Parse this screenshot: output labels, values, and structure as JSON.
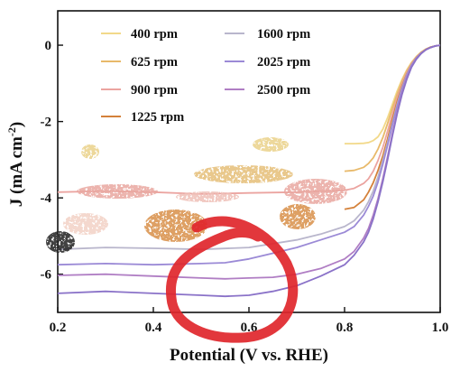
{
  "chart_data": {
    "type": "line",
    "xlabel": "Potential (V vs. RHE)",
    "ylabel_main": "J (mA cm",
    "ylabel_sup": "-2",
    "ylabel_close": ")",
    "xlim": [
      0.2,
      1.0
    ],
    "ylim": [
      -7,
      0.9
    ],
    "x_ticks": [
      0.2,
      0.4,
      0.6,
      0.8,
      1.0
    ],
    "x_tick_labels": [
      "0.2",
      "0.4",
      "0.6",
      "0.8",
      "1.0"
    ],
    "y_ticks": [
      0,
      -2,
      -4,
      -6
    ],
    "y_tick_labels": [
      "0",
      "-2",
      "-4",
      "-6"
    ],
    "grid": false,
    "legend_placement": "top-left",
    "series": [
      {
        "name": "400 rpm",
        "color": "#f2d98a",
        "x": [
          0.8,
          0.82,
          0.84,
          0.85,
          0.86,
          0.87,
          0.88,
          0.89,
          0.9,
          0.91,
          0.92,
          0.93,
          0.94,
          0.95,
          0.96,
          0.97,
          0.98,
          0.99,
          1.0
        ],
        "y": [
          -2.58,
          -2.58,
          -2.57,
          -2.55,
          -2.5,
          -2.4,
          -2.2,
          -1.9,
          -1.55,
          -1.2,
          -0.9,
          -0.65,
          -0.45,
          -0.3,
          -0.18,
          -0.1,
          -0.05,
          -0.02,
          0
        ]
      },
      {
        "name": "625 rpm",
        "color": "#e8b96a",
        "x": [
          0.8,
          0.82,
          0.84,
          0.85,
          0.86,
          0.87,
          0.88,
          0.89,
          0.9,
          0.91,
          0.92,
          0.93,
          0.94,
          0.95,
          0.96,
          0.97,
          0.98,
          0.99,
          1.0
        ],
        "y": [
          -3.3,
          -3.28,
          -3.2,
          -3.1,
          -2.95,
          -2.72,
          -2.42,
          -2.05,
          -1.65,
          -1.28,
          -0.95,
          -0.68,
          -0.47,
          -0.31,
          -0.19,
          -0.11,
          -0.05,
          -0.02,
          0
        ]
      },
      {
        "name": "900 rpm",
        "color": "#eba4a0",
        "x": [
          0.2,
          0.3,
          0.4,
          0.5,
          0.6,
          0.7,
          0.8,
          0.82,
          0.84,
          0.85,
          0.86,
          0.87,
          0.88,
          0.89,
          0.9,
          0.91,
          0.92,
          0.93,
          0.94,
          0.95,
          0.96,
          0.97,
          0.98,
          0.99,
          1.0
        ],
        "y": [
          -3.85,
          -3.82,
          -3.85,
          -3.9,
          -3.87,
          -3.85,
          -3.8,
          -3.75,
          -3.62,
          -3.5,
          -3.3,
          -3.02,
          -2.68,
          -2.25,
          -1.8,
          -1.38,
          -1.02,
          -0.72,
          -0.49,
          -0.32,
          -0.2,
          -0.11,
          -0.05,
          -0.02,
          0
        ]
      },
      {
        "name": "1225 rpm",
        "color": "#d4813a",
        "x": [
          0.8,
          0.82,
          0.84,
          0.85,
          0.86,
          0.87,
          0.88,
          0.89,
          0.9,
          0.91,
          0.92,
          0.93,
          0.94,
          0.95,
          0.96,
          0.97,
          0.98,
          0.99,
          1.0
        ],
        "y": [
          -4.3,
          -4.25,
          -4.05,
          -3.85,
          -3.6,
          -3.28,
          -2.9,
          -2.45,
          -1.95,
          -1.48,
          -1.08,
          -0.76,
          -0.51,
          -0.33,
          -0.2,
          -0.11,
          -0.05,
          -0.02,
          0
        ]
      },
      {
        "name": "1600 rpm",
        "color": "#b9b6cc",
        "x": [
          0.2,
          0.3,
          0.4,
          0.5,
          0.6,
          0.7,
          0.75,
          0.8,
          0.82,
          0.84,
          0.85,
          0.86,
          0.87,
          0.88,
          0.89,
          0.9,
          0.91,
          0.92,
          0.93,
          0.94,
          0.95,
          0.96,
          0.97,
          0.98,
          0.99,
          1.0
        ],
        "y": [
          -5.35,
          -5.3,
          -5.32,
          -5.35,
          -5.3,
          -5.1,
          -4.95,
          -4.75,
          -4.6,
          -4.32,
          -4.1,
          -3.82,
          -3.45,
          -3.02,
          -2.55,
          -2.05,
          -1.55,
          -1.12,
          -0.78,
          -0.52,
          -0.34,
          -0.21,
          -0.12,
          -0.06,
          -0.02,
          0
        ]
      },
      {
        "name": "2025 rpm",
        "color": "#9b8ad6",
        "x": [
          0.2,
          0.3,
          0.4,
          0.5,
          0.55,
          0.6,
          0.65,
          0.7,
          0.75,
          0.8,
          0.82,
          0.84,
          0.85,
          0.86,
          0.87,
          0.88,
          0.89,
          0.9,
          0.91,
          0.92,
          0.93,
          0.94,
          0.95,
          0.96,
          0.97,
          0.98,
          0.99,
          1.0
        ],
        "y": [
          -5.75,
          -5.72,
          -5.75,
          -5.72,
          -5.7,
          -5.6,
          -5.45,
          -5.3,
          -5.1,
          -4.9,
          -4.75,
          -4.45,
          -4.22,
          -3.95,
          -3.58,
          -3.12,
          -2.62,
          -2.1,
          -1.6,
          -1.15,
          -0.8,
          -0.53,
          -0.34,
          -0.21,
          -0.12,
          -0.06,
          -0.02,
          0
        ]
      },
      {
        "name": "2500 rpm",
        "color": "#b07ec4",
        "x": [
          0.2,
          0.3,
          0.4,
          0.5,
          0.55,
          0.6,
          0.65,
          0.7,
          0.75,
          0.8,
          0.82,
          0.84,
          0.85,
          0.86,
          0.87,
          0.88,
          0.89,
          0.9,
          0.91,
          0.92,
          0.93,
          0.94,
          0.95,
          0.96,
          0.97,
          0.98,
          0.99,
          1.0
        ],
        "y": [
          -6.03,
          -6.0,
          -6.05,
          -6.1,
          -6.12,
          -6.1,
          -6.08,
          -6.0,
          -5.85,
          -5.6,
          -5.4,
          -5.05,
          -4.8,
          -4.45,
          -4.02,
          -3.5,
          -2.92,
          -2.32,
          -1.75,
          -1.25,
          -0.86,
          -0.56,
          -0.36,
          -0.22,
          -0.12,
          -0.06,
          -0.02,
          0
        ]
      },
      {
        "name": "",
        "color": "#8a72c8",
        "x": [
          0.2,
          0.3,
          0.4,
          0.5,
          0.55,
          0.6,
          0.65,
          0.7,
          0.75,
          0.8,
          0.82,
          0.84,
          0.85,
          0.86,
          0.87,
          0.88,
          0.89,
          0.9,
          0.91,
          0.92,
          0.93,
          0.94,
          0.95,
          0.96,
          0.97,
          0.98,
          0.99,
          1.0
        ],
        "y": [
          -6.5,
          -6.45,
          -6.5,
          -6.55,
          -6.58,
          -6.55,
          -6.45,
          -6.3,
          -6.05,
          -5.75,
          -5.5,
          -5.15,
          -4.9,
          -4.55,
          -4.1,
          -3.58,
          -3.0,
          -2.38,
          -1.8,
          -1.3,
          -0.9,
          -0.58,
          -0.37,
          -0.22,
          -0.12,
          -0.06,
          -0.02,
          0
        ]
      }
    ],
    "legend_columns": [
      [
        "400 rpm",
        "625 rpm",
        "900 rpm",
        "1225 rpm"
      ],
      [
        "1600 rpm",
        "2025 rpm",
        "2500 rpm"
      ]
    ],
    "annotations": [
      {
        "type": "hand-drawn-circle",
        "color": "#e0262b",
        "center": [
          0.56,
          -5.95
        ]
      }
    ]
  }
}
